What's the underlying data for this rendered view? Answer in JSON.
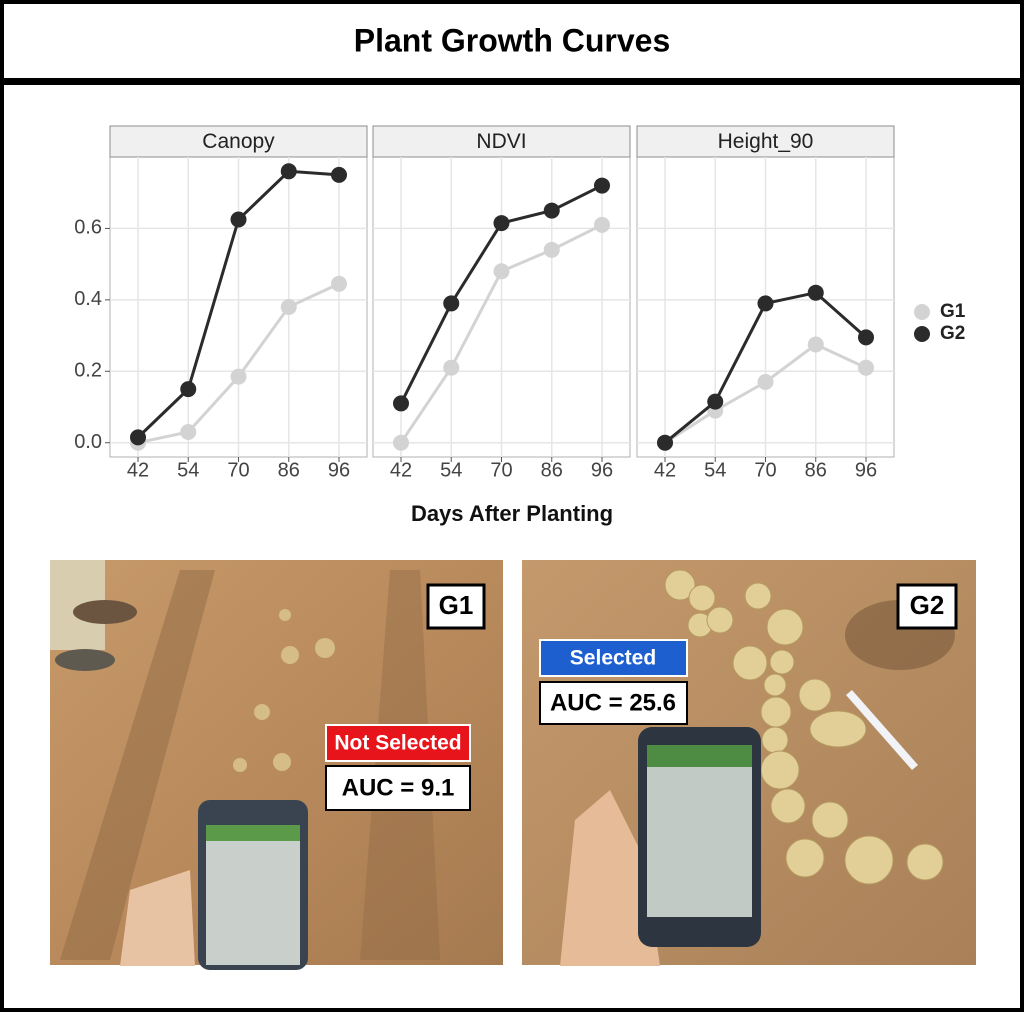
{
  "title": "Plant Growth Curves",
  "chart_data": [
    {
      "type": "line",
      "title": "Canopy",
      "categories": [
        "42",
        "54",
        "70",
        "86",
        "96"
      ],
      "xlabel": "Days After Planting",
      "series": [
        {
          "name": "G1",
          "color": "#d3d3d3",
          "values": [
            0.0,
            0.03,
            0.185,
            0.38,
            0.445
          ]
        },
        {
          "name": "G2",
          "color": "#2b2b2b",
          "values": [
            0.015,
            0.15,
            0.625,
            0.76,
            0.75
          ]
        }
      ],
      "ylim": [
        -0.04,
        0.8
      ],
      "yticks": [
        {
          "value": 0,
          "label": "0.0"
        },
        0.2,
        0.4,
        0.6
      ],
      "grid": true
    },
    {
      "type": "line",
      "title": "NDVI",
      "categories": [
        "42",
        "54",
        "70",
        "86",
        "96"
      ],
      "series": [
        {
          "name": "G1",
          "color": "#d3d3d3",
          "values": [
            0.0,
            0.21,
            0.48,
            0.54,
            0.61
          ]
        },
        {
          "name": "G2",
          "color": "#2b2b2b",
          "values": [
            0.11,
            0.39,
            0.615,
            0.65,
            0.72
          ]
        }
      ],
      "ylim": [
        -0.04,
        0.8
      ],
      "yticks": [
        {
          "value": 0,
          "label": "0.0"
        },
        0.2,
        0.4,
        0.6
      ],
      "grid": true
    },
    {
      "type": "line",
      "title": "Height_90",
      "categories": [
        "42",
        "54",
        "70",
        "86",
        "96"
      ],
      "series": [
        {
          "name": "G1",
          "color": "#d3d3d3",
          "values": [
            0.0,
            0.09,
            0.17,
            0.275,
            0.21
          ]
        },
        {
          "name": "G2",
          "color": "#2b2b2b",
          "values": [
            0.0,
            0.115,
            0.39,
            0.42,
            0.295
          ]
        }
      ],
      "ylim": [
        -0.04,
        0.8
      ],
      "yticks": [
        {
          "value": 0,
          "label": "0.0"
        },
        0.2,
        0.4,
        0.6
      ],
      "grid": true
    }
  ],
  "photos": [
    {
      "label": "G1",
      "status": "Not Selected",
      "auc": "AUC = 9.1"
    },
    {
      "label": "G2",
      "status": "Selected",
      "auc": "AUC = 25.6"
    }
  ]
}
